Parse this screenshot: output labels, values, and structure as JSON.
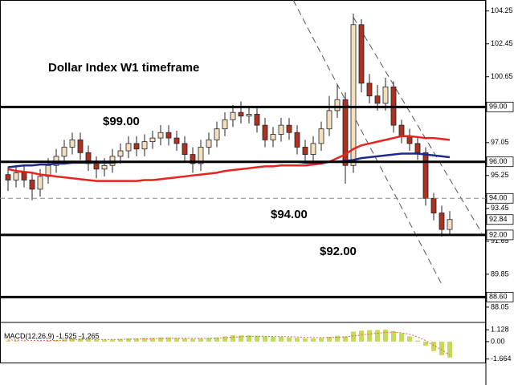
{
  "chart_data": {
    "type": "candlestick",
    "title": "Dollar Index W1 timeframe",
    "up_color": "#f4e0c0",
    "down_color": "#b03020",
    "open": [
      95.3,
      95.0,
      95.4,
      95.0,
      94.5,
      95.2,
      95.8,
      96.3,
      96.8,
      97.2,
      96.5,
      95.9,
      95.6,
      95.8,
      96.3,
      96.6,
      97.0,
      96.7,
      97.1,
      97.3,
      97.6,
      97.3,
      97.0,
      96.4,
      95.9,
      96.8,
      97.2,
      97.8,
      98.3,
      98.7,
      98.5,
      98.6,
      98.0,
      97.2,
      97.5,
      98.0,
      97.6,
      96.8,
      96.4,
      97.0,
      97.8,
      98.8,
      99.4,
      95.8,
      103.5,
      100.3,
      99.6,
      99.2,
      100.1,
      98.0,
      97.4,
      97.0,
      96.5,
      94.0,
      93.2,
      92.3
    ],
    "high": [
      95.7,
      95.8,
      95.8,
      95.4,
      95.6,
      96.2,
      96.7,
      97.2,
      97.6,
      97.6,
      96.9,
      96.3,
      96.2,
      96.7,
      97.0,
      97.4,
      97.4,
      97.5,
      97.7,
      98.0,
      98.0,
      97.7,
      97.4,
      96.8,
      97.2,
      97.6,
      98.2,
      98.7,
      99.1,
      99.3,
      99.0,
      99.0,
      98.4,
      97.9,
      98.4,
      98.4,
      98.0,
      97.2,
      97.4,
      98.2,
      99.6,
      100.2,
      99.8,
      104.1,
      103.8,
      100.8,
      100.2,
      100.6,
      100.4,
      98.3,
      97.8,
      97.4,
      96.8,
      94.3,
      93.6,
      93.3
    ],
    "low": [
      94.4,
      94.6,
      94.6,
      93.9,
      94.1,
      94.8,
      95.4,
      95.9,
      96.4,
      96.1,
      95.5,
      95.1,
      95.2,
      95.4,
      95.9,
      96.2,
      96.3,
      96.3,
      96.7,
      96.9,
      96.9,
      96.6,
      96.0,
      95.4,
      95.5,
      96.4,
      96.8,
      97.4,
      97.9,
      98.1,
      98.1,
      97.6,
      96.8,
      96.8,
      97.1,
      97.2,
      96.4,
      96.0,
      96.0,
      96.6,
      97.4,
      98.4,
      94.8,
      95.4,
      99.8,
      99.2,
      98.8,
      98.8,
      97.6,
      97.0,
      96.6,
      96.1,
      93.6,
      92.8,
      91.9,
      92.0
    ],
    "close": [
      95.0,
      95.4,
      95.0,
      94.5,
      95.2,
      95.8,
      96.3,
      96.8,
      97.2,
      96.5,
      95.9,
      95.6,
      95.8,
      96.3,
      96.6,
      97.0,
      96.7,
      97.1,
      97.3,
      97.6,
      97.3,
      97.0,
      96.4,
      95.9,
      96.8,
      97.2,
      97.8,
      98.3,
      98.7,
      98.5,
      98.6,
      98.0,
      97.2,
      97.5,
      98.0,
      97.6,
      96.8,
      96.4,
      97.0,
      97.8,
      98.8,
      99.4,
      95.8,
      103.5,
      100.3,
      99.6,
      99.2,
      100.1,
      98.0,
      97.4,
      97.0,
      96.5,
      94.0,
      93.2,
      92.3,
      92.84
    ],
    "ma": [
      {
        "color": "#e8231e",
        "values": [
          95.6,
          95.5,
          95.45,
          95.4,
          95.3,
          95.25,
          95.2,
          95.15,
          95.1,
          95.05,
          95.0,
          94.95,
          94.95,
          94.95,
          94.95,
          94.95,
          94.95,
          95.0,
          95.0,
          95.05,
          95.1,
          95.15,
          95.2,
          95.25,
          95.3,
          95.35,
          95.4,
          95.5,
          95.55,
          95.6,
          95.65,
          95.7,
          95.75,
          95.75,
          95.8,
          95.8,
          95.8,
          95.8,
          95.85,
          95.9,
          96.0,
          96.2,
          96.4,
          96.7,
          96.9,
          97.0,
          97.1,
          97.2,
          97.3,
          97.4,
          97.4,
          97.35,
          97.3,
          97.3,
          97.25,
          97.2
        ]
      },
      {
        "color": "#1c2a8c",
        "values": [
          95.7,
          95.75,
          95.8,
          95.8,
          95.85,
          95.85,
          95.9,
          95.9,
          95.95,
          95.95,
          95.95,
          95.95,
          95.95,
          95.95,
          96.0,
          96.0,
          96.0,
          96.0,
          96.0,
          96.0,
          96.0,
          96.0,
          96.0,
          96.0,
          96.0,
          96.0,
          96.0,
          96.0,
          96.0,
          96.0,
          96.0,
          96.0,
          96.0,
          96.0,
          96.0,
          96.0,
          96.0,
          95.95,
          95.95,
          95.95,
          96.0,
          96.0,
          96.05,
          96.1,
          96.2,
          96.25,
          96.3,
          96.35,
          96.4,
          96.45,
          96.45,
          96.45,
          96.4,
          96.35,
          96.3,
          96.25
        ]
      }
    ],
    "ylim": [
      87.3,
      104.85
    ],
    "yticks": [
      104.25,
      102.45,
      100.65,
      97.05,
      95.25,
      93.45,
      91.65,
      89.85,
      88.05
    ],
    "levels": [
      {
        "value": 99,
        "label": "99.00",
        "style": "solid"
      },
      {
        "value": 96,
        "label": "96.00",
        "style": "solid"
      },
      {
        "value": 94,
        "label": "94.00",
        "style": "dashed"
      },
      {
        "value": 92,
        "label": "92.00",
        "style": "solid"
      },
      {
        "value": 88.6,
        "label": "88.60",
        "style": "solid"
      }
    ],
    "last_price": 92.84,
    "trendlines": [
      {
        "start": [
          35.5,
          104.85
        ],
        "end": [
          54,
          89.3
        ]
      },
      {
        "start": [
          43,
          103.9
        ],
        "end": [
          59,
          92.1
        ]
      }
    ],
    "annotations": [
      "$99.00",
      "$94.00",
      "$92.00"
    ],
    "macd": {
      "label": "MACD(12,26,9)",
      "main_value": -1.525,
      "signal_value": -1.265,
      "histogram_color": "#c8d85a",
      "signal_color": "#e06060",
      "histogram": [
        0.1,
        0.1,
        0.05,
        0.0,
        0.05,
        0.1,
        0.15,
        0.2,
        0.3,
        0.3,
        0.25,
        0.2,
        0.2,
        0.2,
        0.25,
        0.3,
        0.3,
        0.35,
        0.35,
        0.4,
        0.4,
        0.35,
        0.3,
        0.25,
        0.3,
        0.35,
        0.4,
        0.5,
        0.6,
        0.6,
        0.6,
        0.55,
        0.5,
        0.45,
        0.45,
        0.4,
        0.35,
        0.3,
        0.3,
        0.35,
        0.45,
        0.55,
        0.5,
        0.95,
        1.05,
        1.1,
        1.1,
        1.15,
        1.0,
        0.8,
        0.5,
        0.1,
        -0.4,
        -0.9,
        -1.3,
        -1.525
      ],
      "signal": [
        0.15,
        0.14,
        0.13,
        0.11,
        0.1,
        0.1,
        0.11,
        0.13,
        0.16,
        0.19,
        0.2,
        0.2,
        0.2,
        0.2,
        0.21,
        0.23,
        0.24,
        0.26,
        0.28,
        0.3,
        0.32,
        0.33,
        0.32,
        0.31,
        0.31,
        0.32,
        0.34,
        0.37,
        0.42,
        0.46,
        0.49,
        0.5,
        0.5,
        0.49,
        0.48,
        0.47,
        0.44,
        0.41,
        0.39,
        0.38,
        0.39,
        0.42,
        0.44,
        0.54,
        0.64,
        0.73,
        0.8,
        0.87,
        0.9,
        0.85,
        0.7,
        0.45,
        0.1,
        -0.35,
        -0.8,
        -1.265
      ],
      "ylim": [
        -2.0,
        1.6
      ],
      "yticks": [
        1.128,
        {
          "value": 0,
          "label": "0.00"
        },
        -1.664
      ]
    }
  }
}
